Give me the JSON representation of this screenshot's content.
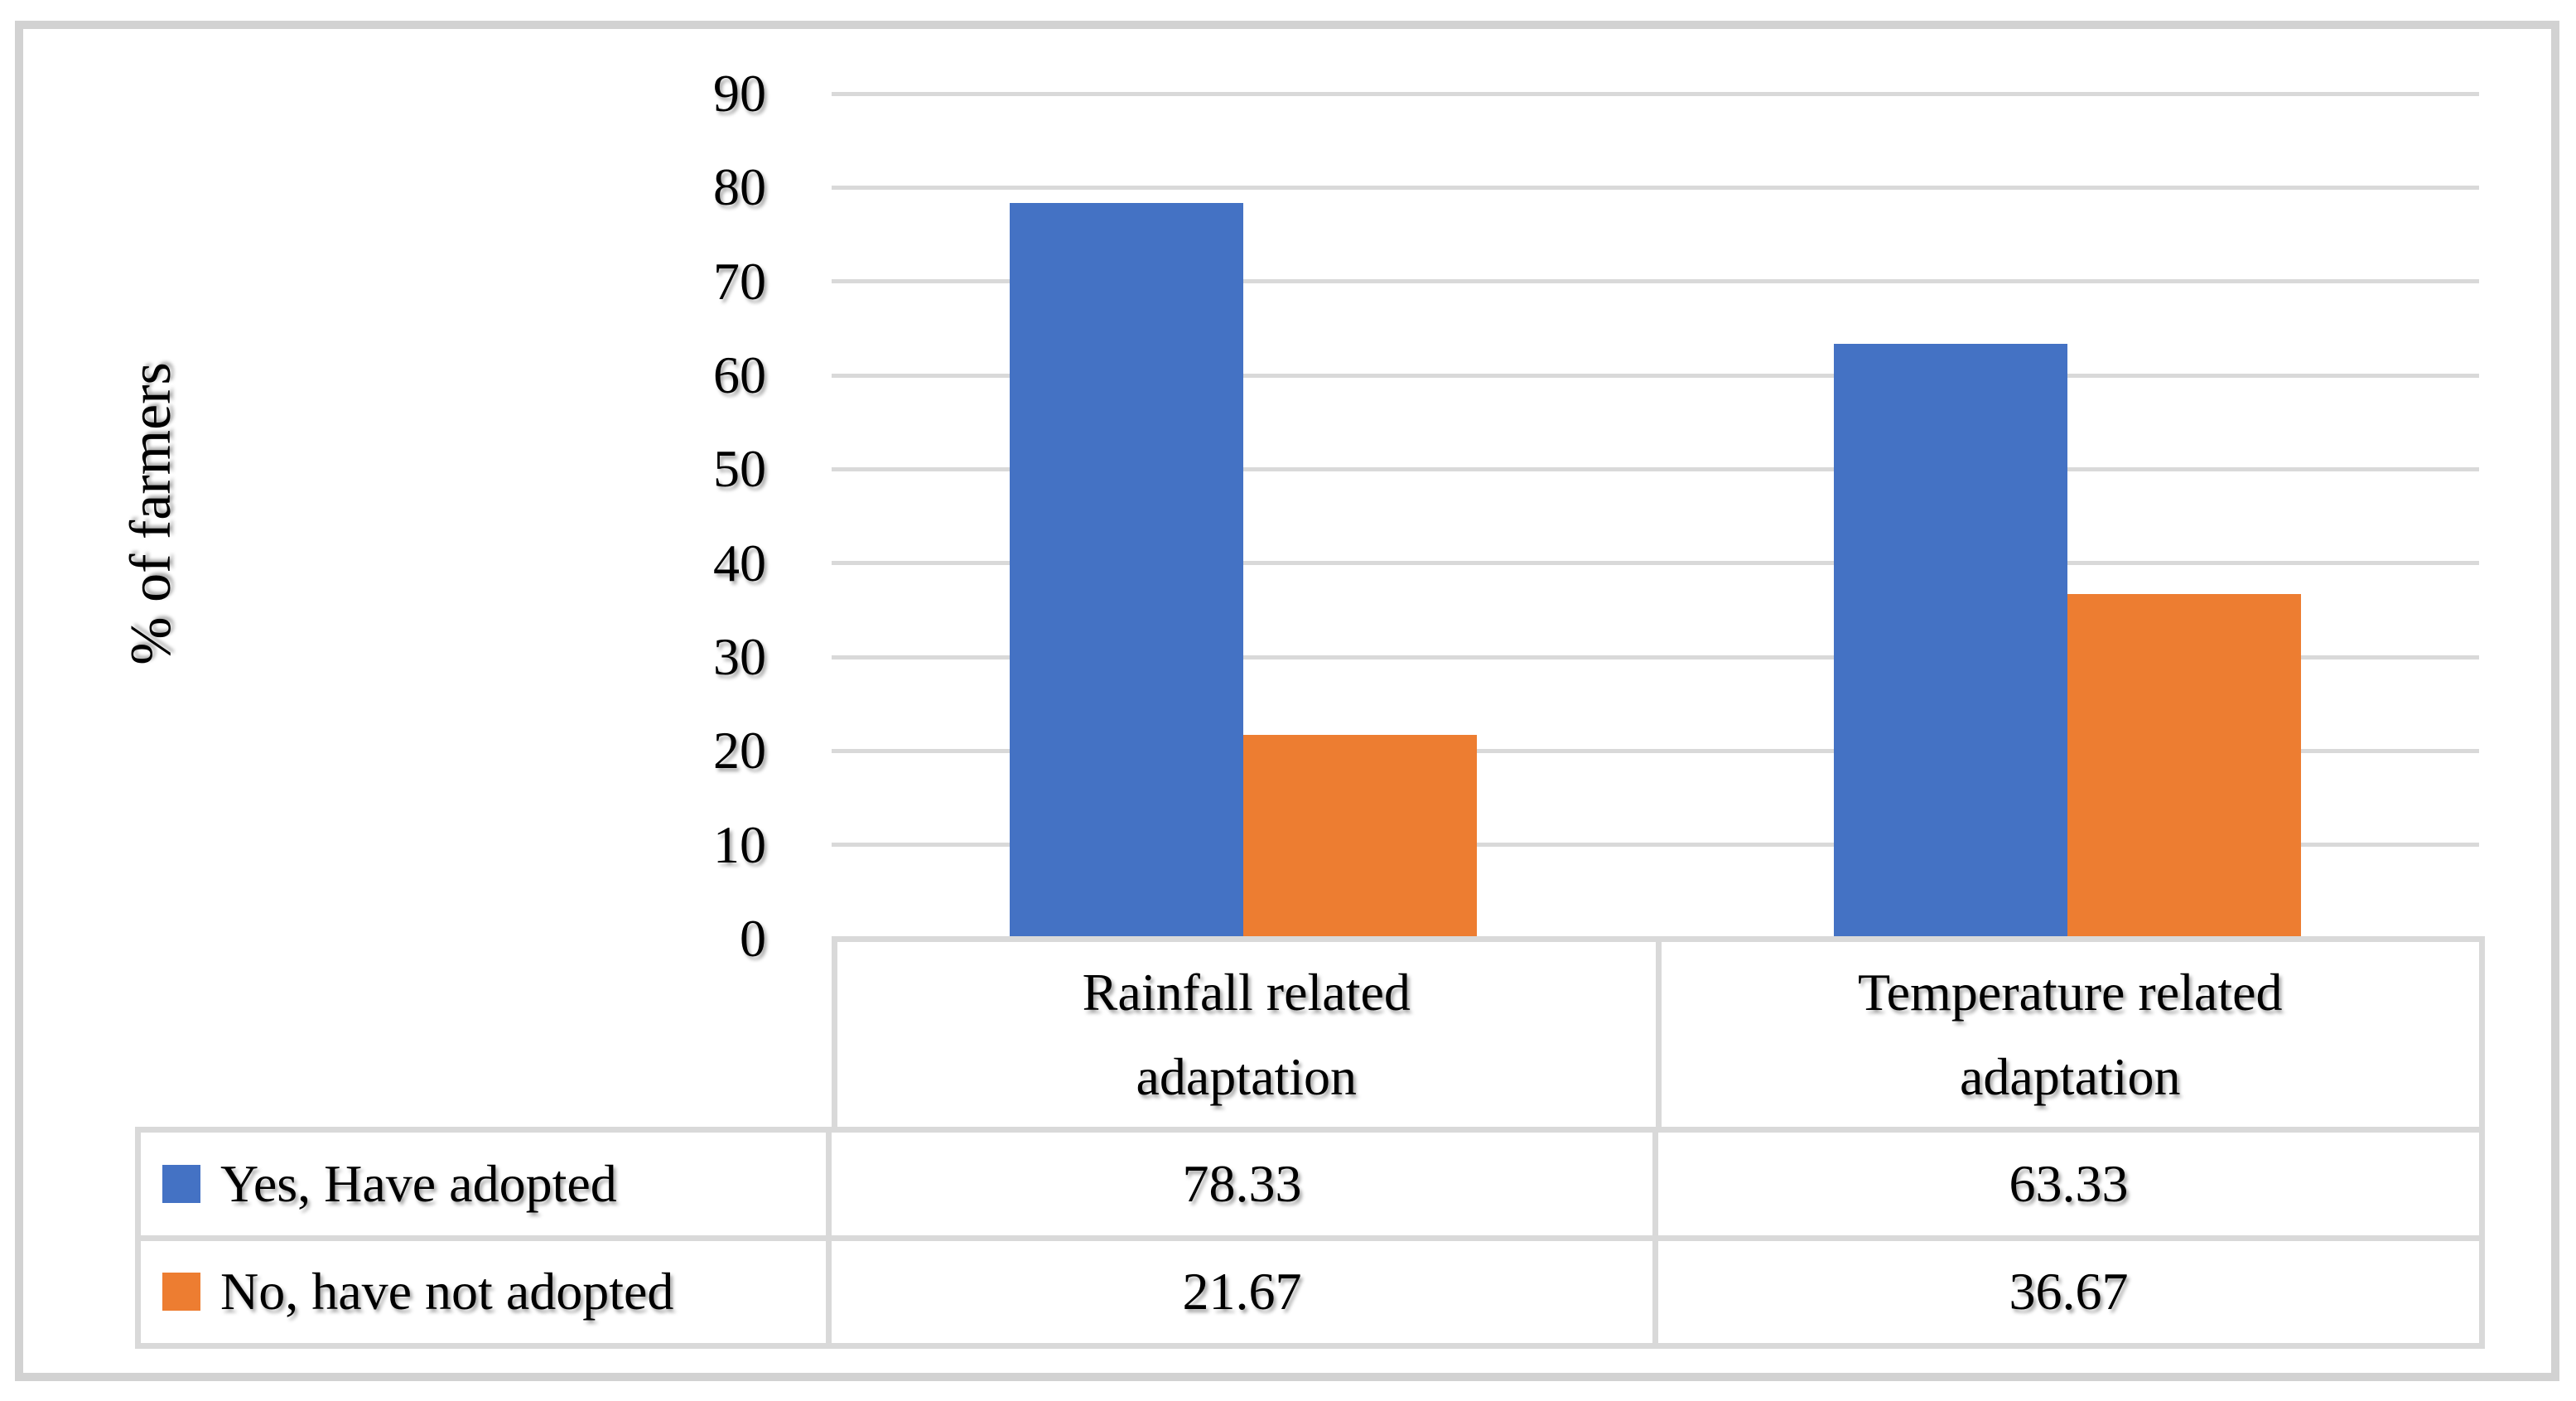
{
  "chart_data": {
    "type": "bar",
    "categories": [
      "Rainfall related adaptation",
      "Temperature related adaptation"
    ],
    "series": [
      {
        "name": "Yes, Have adopted",
        "color": "#4472C4",
        "values": [
          78.33,
          63.33
        ]
      },
      {
        "name": "No, have not adopted",
        "color": "#ED7D31",
        "values": [
          21.67,
          36.67
        ]
      }
    ],
    "title": "",
    "xlabel": "",
    "ylabel": "% of farmers",
    "ylim": [
      0,
      90
    ],
    "yticks": [
      0,
      10,
      20,
      30,
      40,
      50,
      60,
      70,
      80,
      90
    ],
    "grid": "horizontal",
    "legend_position": "data-table-left-column",
    "colors": {
      "gridline": "#D9D9D9",
      "table_border": "#D9D9D9",
      "frame_border": "#D2D2D2",
      "background": "#FFFFFF"
    }
  },
  "axis": {
    "ylabel": "% of farmers",
    "tick_labels": [
      "90",
      "80",
      "70",
      "60",
      "50",
      "40",
      "30",
      "20",
      "10",
      "0"
    ]
  },
  "table": {
    "column_headers": [
      [
        "Rainfall related",
        "adaptation"
      ],
      [
        "Temperature related",
        "adaptation"
      ]
    ],
    "rows": [
      {
        "legend": "Yes, Have adopted",
        "swatch_color": "#4472C4",
        "values": [
          "78.33",
          "63.33"
        ]
      },
      {
        "legend": "No, have not adopted",
        "swatch_color": "#ED7D31",
        "values": [
          "21.67",
          "36.67"
        ]
      }
    ]
  }
}
